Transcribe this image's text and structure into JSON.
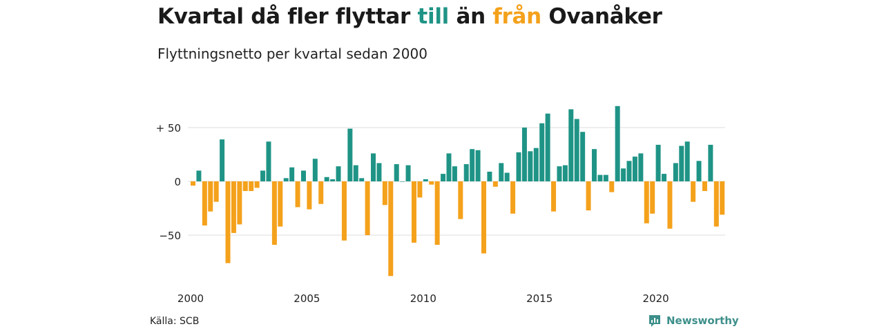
{
  "header": {
    "title_parts": {
      "p1": "Kvartal då fler flyttar ",
      "p2": "till",
      "p3": " än ",
      "p4": "från",
      "p5": " Ovanåker"
    },
    "subtitle": "Flyttningsnetto per kvartal sedan 2000"
  },
  "footer": {
    "source": "Källa: SCB",
    "brand": "Newsworthy"
  },
  "colors": {
    "positive": "#1f9486",
    "negative": "#f4a11c",
    "grid": "#dddddd",
    "brand": "#3d8f8a"
  },
  "chart_data": {
    "type": "bar",
    "x_start": "2000 Q1",
    "frequency": "quarterly",
    "yticks": [
      {
        "value": 50,
        "label": "+ 50"
      },
      {
        "value": 0,
        "label": "0"
      },
      {
        "value": -50,
        "label": "−50"
      }
    ],
    "xticks": [
      {
        "index": 0,
        "label": "2000"
      },
      {
        "index": 20,
        "label": "2005"
      },
      {
        "index": 40,
        "label": "2010"
      },
      {
        "index": 60,
        "label": "2015"
      },
      {
        "index": 80,
        "label": "2020"
      }
    ],
    "values": [
      -4,
      10,
      -41,
      -28,
      -19,
      39,
      -76,
      -48,
      -40,
      -9,
      -9,
      -6,
      10,
      37,
      -59,
      -42,
      3,
      13,
      -24,
      10,
      -26,
      21,
      -21,
      4,
      2,
      14,
      -55,
      49,
      15,
      3,
      -50,
      26,
      17,
      -22,
      -88,
      16,
      0,
      15,
      -57,
      -15,
      2,
      -3,
      -59,
      7,
      26,
      14,
      -35,
      16,
      30,
      29,
      -67,
      9,
      -5,
      17,
      8,
      -30,
      27,
      50,
      28,
      31,
      54,
      63,
      -28,
      14,
      15,
      67,
      58,
      46,
      -27,
      30,
      6,
      6,
      -10,
      70,
      12,
      19,
      23,
      26,
      -39,
      -30,
      34,
      7,
      -44,
      17,
      33,
      37,
      -19,
      19,
      -9,
      34,
      -42,
      -31
    ],
    "ylim": [
      -95,
      75
    ],
    "xlabel": "",
    "ylabel": ""
  }
}
